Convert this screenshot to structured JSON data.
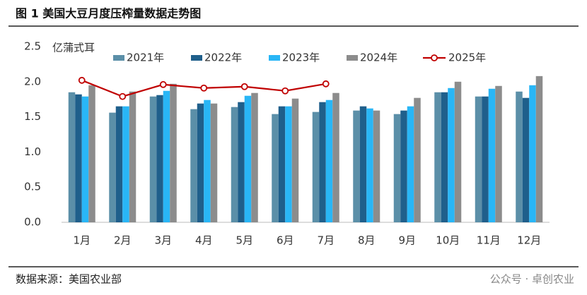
{
  "chart_data": {
    "type": "bar",
    "title": "图 1 美国大豆月度压榨量数据走势图",
    "y_label": "亿蒲式耳",
    "source": "数据来源：美国农业部",
    "watermark": "公众号 · 卓创农业",
    "categories": [
      "1月",
      "2月",
      "3月",
      "4月",
      "5月",
      "6月",
      "7月",
      "8月",
      "9月",
      "10月",
      "11月",
      "12月"
    ],
    "ylim": [
      0,
      2.5
    ],
    "yticks": [
      {
        "value": 0,
        "label": "0.0"
      },
      0.5,
      {
        "value": 1,
        "label": "1.0"
      },
      1.5,
      {
        "value": 2,
        "label": "2.0"
      },
      2.5
    ],
    "grid": false,
    "series": [
      {
        "name": "2021年",
        "color": "#5b8fa8",
        "values": [
          1.85,
          1.56,
          1.79,
          1.61,
          1.64,
          1.54,
          1.57,
          1.59,
          1.54,
          1.85,
          1.79,
          1.86
        ]
      },
      {
        "name": "2022年",
        "color": "#1f5f8b",
        "values": [
          1.82,
          1.65,
          1.81,
          1.69,
          1.71,
          1.65,
          1.71,
          1.65,
          1.59,
          1.85,
          1.79,
          1.77
        ]
      },
      {
        "name": "2023年",
        "color": "#29b6f6",
        "values": [
          1.79,
          1.65,
          1.87,
          1.74,
          1.8,
          1.65,
          1.74,
          1.62,
          1.65,
          1.91,
          1.9,
          1.95
        ]
      },
      {
        "name": "2024年",
        "color": "#8c8c8c",
        "values": [
          1.95,
          1.86,
          1.97,
          1.69,
          1.84,
          1.76,
          1.84,
          1.59,
          1.77,
          2.0,
          1.94,
          2.08
        ]
      },
      {
        "name": "2025年",
        "color": "#c00000",
        "type": "line",
        "values": [
          2.02,
          1.79,
          1.96,
          1.91,
          1.93,
          1.87,
          1.97,
          null,
          null,
          null,
          null,
          null
        ]
      }
    ]
  }
}
